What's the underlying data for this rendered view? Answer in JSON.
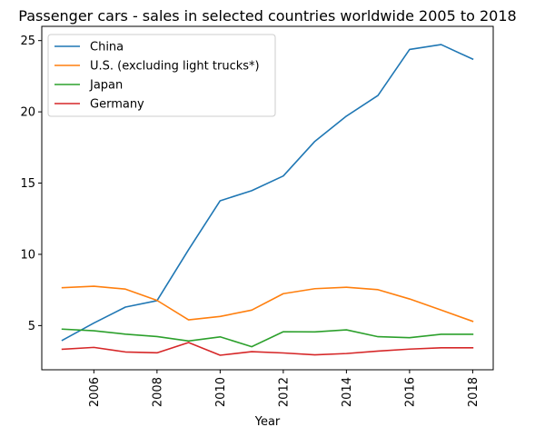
{
  "chart_data": {
    "type": "line",
    "title": "Passenger cars - sales in selected countries worldwide 2005 to 2018",
    "xlabel": "Year",
    "ylabel": "",
    "xlim": [
      2004.35,
      2018.65
    ],
    "ylim": [
      1.9,
      26.0
    ],
    "x_ticks": [
      2006,
      2008,
      2010,
      2012,
      2014,
      2016,
      2018
    ],
    "y_ticks": [
      5,
      10,
      15,
      20,
      25
    ],
    "grid": false,
    "legend_position": "top-left",
    "x": [
      2005,
      2006,
      2007,
      2008,
      2009,
      2010,
      2011,
      2012,
      2013,
      2014,
      2015,
      2016,
      2017,
      2018
    ],
    "series": [
      {
        "name": "China",
        "color": "#1f77b4",
        "values": [
          3.97,
          5.18,
          6.3,
          6.75,
          10.33,
          13.76,
          14.47,
          15.5,
          17.93,
          19.7,
          21.15,
          24.38,
          24.72,
          23.7
        ]
      },
      {
        "name": "U.S. (excluding light trucks*)",
        "color": "#ff7f0e",
        "values": [
          7.66,
          7.76,
          7.56,
          6.77,
          5.4,
          5.64,
          6.09,
          7.24,
          7.59,
          7.69,
          7.52,
          6.87,
          6.09,
          5.3
        ]
      },
      {
        "name": "Japan",
        "color": "#2ca02c",
        "values": [
          4.75,
          4.64,
          4.4,
          4.23,
          3.92,
          4.21,
          3.52,
          4.57,
          4.56,
          4.7,
          4.22,
          4.15,
          4.39,
          4.39
        ]
      },
      {
        "name": "Germany",
        "color": "#d62728",
        "values": [
          3.34,
          3.47,
          3.15,
          3.09,
          3.81,
          2.92,
          3.17,
          3.08,
          2.95,
          3.04,
          3.21,
          3.35,
          3.44,
          3.44
        ]
      }
    ]
  }
}
